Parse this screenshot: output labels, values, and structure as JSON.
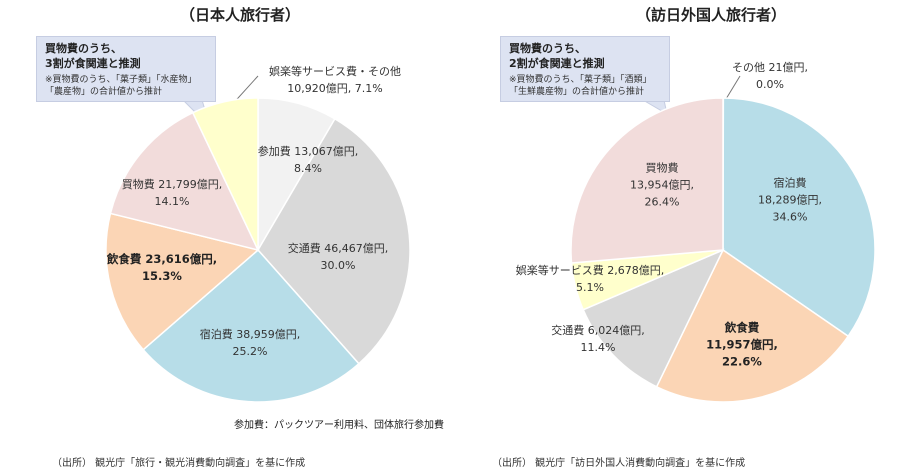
{
  "chart_data": [
    {
      "type": "pie",
      "title": "（日本人旅行者）",
      "slices": [
        {
          "name": "参加費",
          "value_oku_yen": 13067,
          "value_text": "13,067億円,",
          "percent_text": "8.4%",
          "color": "#f2f2f2",
          "bold": false
        },
        {
          "name": "交通費",
          "value_oku_yen": 46467,
          "value_text": "46,467億円,",
          "percent_text": "30.0%",
          "color": "#d9d9d9",
          "bold": false
        },
        {
          "name": "宿泊費",
          "value_oku_yen": 38959,
          "value_text": "38,959億円,",
          "percent_text": "25.2%",
          "color": "#b7dde8",
          "bold": false
        },
        {
          "name": "飲食費",
          "value_oku_yen": 23616,
          "value_text": "23,616億円,",
          "percent_text": "15.3%",
          "color": "#fbd5b5",
          "bold": true
        },
        {
          "name": "買物費",
          "value_oku_yen": 21799,
          "value_text": "21,799億円,",
          "percent_text": "14.1%",
          "color": "#f2dcdb",
          "bold": false
        },
        {
          "name": "娯楽等サービス費・その他",
          "value_oku_yen": 10920,
          "value_text": "10,920億円,",
          "percent_text": "7.1%",
          "color": "#ffffcc",
          "bold": false
        }
      ],
      "callout": {
        "head_line1": "買物費のうち、",
        "head_line2": "3割が食関連と推測",
        "note_line1": "※買物費のうち、「菓子類」「水産物」",
        "note_line2": "「農産物」の合計値から推計"
      },
      "participation_note": "参加費：パックツアー利用料、団体旅行参加費",
      "source": "（出所） 観光庁「旅行・観光消費動向調査」を基に作成"
    },
    {
      "type": "pie",
      "title": "（訪日外国人旅行者）",
      "slices": [
        {
          "name": "その他",
          "value_oku_yen": 21,
          "value_text": "21億円,",
          "percent_text": "0.0%",
          "color": "#ffffff",
          "bold": false
        },
        {
          "name": "宿泊費",
          "value_oku_yen": 18289,
          "value_text": "18,289億円,",
          "percent_text": "34.6%",
          "color": "#b7dde8",
          "bold": false
        },
        {
          "name": "飲食費",
          "value_oku_yen": 11957,
          "value_text": "11,957億円,",
          "percent_text": "22.6%",
          "color": "#fbd5b5",
          "bold": true
        },
        {
          "name": "交通費",
          "value_oku_yen": 6024,
          "value_text": "6,024億円,",
          "percent_text": "11.4%",
          "color": "#d9d9d9",
          "bold": false
        },
        {
          "name": "娯楽等サービス費",
          "value_oku_yen": 2678,
          "value_text": "2,678億円,",
          "percent_text": "5.1%",
          "color": "#ffffcc",
          "bold": false
        },
        {
          "name": "買物費",
          "value_oku_yen": 13954,
          "value_text": "13,954億円,",
          "percent_text": "26.4%",
          "color": "#f2dcdb",
          "bold": false
        }
      ],
      "callout": {
        "head_line1": "買物費のうち、",
        "head_line2": "2割が食関連と推測",
        "note_line1": "※買物費のうち、「菓子類」「酒類」",
        "note_line2": "「生鮮農産物」の合計値から推計"
      },
      "source": "（出所） 観光庁「訪日外国人消費動向調査」を基に作成"
    }
  ]
}
